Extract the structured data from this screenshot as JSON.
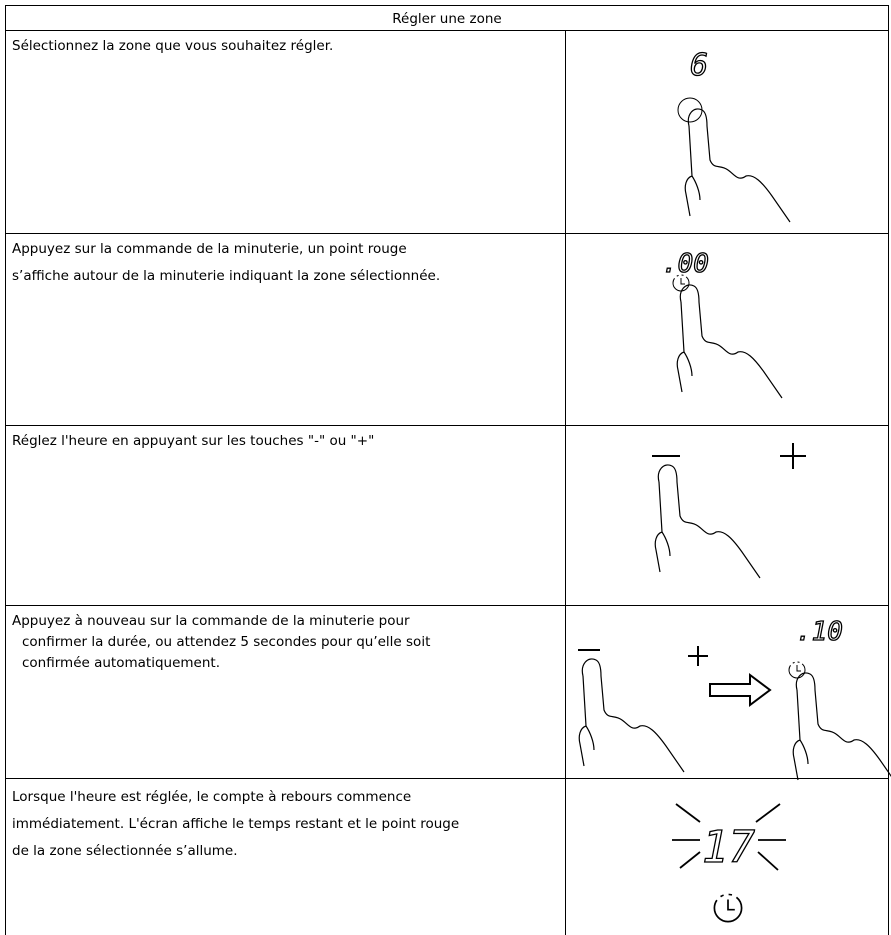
{
  "table": {
    "title": "Régler une zone",
    "rows": [
      {
        "lines": [
          "Sélectionnez la zone que vous souhaitez régler."
        ],
        "display": "6"
      },
      {
        "lines": [
          "Appuyez sur la commande de la minuterie, un point rouge",
          "s’affiche autour de la minuterie indiquant la zone sélectionnée."
        ],
        "display": ".00"
      },
      {
        "lines": [
          "Réglez l'heure en appuyant sur les touches \"-\" ou \"+\""
        ]
      },
      {
        "lines": [
          "Appuyez à nouveau sur la commande de la minuterie pour",
          "confirmer la durée, ou attendez 5 secondes pour qu’elle soit",
          "confirmée automatiquement."
        ],
        "display": ".10"
      },
      {
        "lines": [
          "Lorsque l'heure est réglée, le compte à rebours commence",
          "immédiatement. L'écran affiche le temps restant et le point rouge",
          "de la zone sélectionnée s’allume."
        ],
        "display": "17"
      }
    ]
  }
}
